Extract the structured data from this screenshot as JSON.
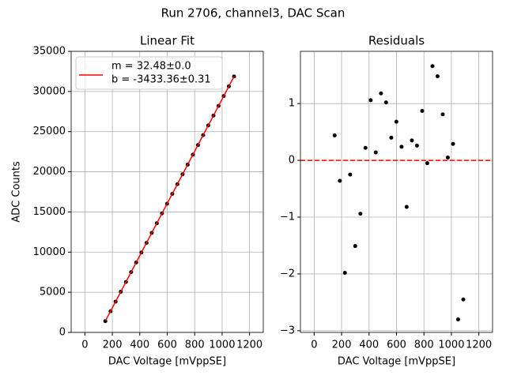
{
  "title": "Run 2706, channel3, DAC Scan",
  "chart_data": [
    {
      "type": "scatter",
      "title": "Linear Fit",
      "x_label": "DAC Voltage [mVppSE]",
      "y_label": "ADC Counts",
      "x": [
        149,
        187,
        224,
        262,
        299,
        337,
        374,
        412,
        449,
        487,
        524,
        562,
        599,
        637,
        674,
        712,
        749,
        787,
        824,
        862,
        899,
        937,
        974,
        1012,
        1049,
        1087
      ],
      "series": [
        {
          "color": "#000000",
          "values": [
            1406.6,
            2640,
            3840.2,
            5076.2,
            6276.7,
            7511.5,
            8714.4,
            9949.5,
            11150.3,
            12385.6,
            13587.2,
            14820.8,
            16022.8,
            17256.6,
            18457.3,
            19692.8,
            20894.4,
            22129.3,
            23330.1,
            24566.1,
            25767.6,
            27001.2,
            28202.2,
            29436.7,
            30635.4,
            31870
          ]
        },
        {
          "name": [
            "m = 32.48±0.0",
            "b = -3433.36±0.31"
          ],
          "color": "#ff0000",
          "style": "line",
          "x": [
            149,
            1087
          ],
          "values": [
            1406.16,
            31872.4
          ]
        }
      ],
      "xlim": [
        -100,
        1300
      ],
      "xticks": [
        0,
        200,
        400,
        600,
        800,
        1000,
        1200
      ],
      "ylim": [
        0,
        35000
      ],
      "yticks": [
        0,
        5000,
        10000,
        15000,
        20000,
        25000,
        30000,
        35000
      ],
      "grid": true,
      "legend": "upper left"
    },
    {
      "type": "scatter",
      "title": "Residuals",
      "x_label": "DAC Voltage [mVppSE]",
      "x": [
        149,
        187,
        224,
        262,
        299,
        337,
        374,
        412,
        449,
        487,
        524,
        562,
        599,
        637,
        674,
        712,
        749,
        787,
        824,
        862,
        899,
        937,
        974,
        1012,
        1049,
        1087
      ],
      "series": [
        {
          "color": "#000000",
          "values": [
            0.44,
            -0.36,
            -1.98,
            -0.25,
            -1.51,
            -0.94,
            0.22,
            1.06,
            0.14,
            1.18,
            1.02,
            0.4,
            0.68,
            0.24,
            -0.82,
            0.35,
            0.26,
            0.87,
            -0.05,
            1.66,
            1.48,
            0.81,
            0.05,
            0.29,
            -2.8,
            -2.45
          ]
        }
      ],
      "hline": {
        "value": 0,
        "color": "#ff0000"
      },
      "xlim": [
        -100,
        1300
      ],
      "xticks": [
        0,
        200,
        400,
        600,
        800,
        1000,
        1200
      ],
      "ylim": [
        -3.03,
        1.92
      ],
      "yticks": [
        {
          "value": -3,
          "label": "−3"
        },
        {
          "value": -2,
          "label": "−2"
        },
        {
          "value": -1,
          "label": "−1"
        },
        0,
        1
      ],
      "grid": true
    }
  ]
}
